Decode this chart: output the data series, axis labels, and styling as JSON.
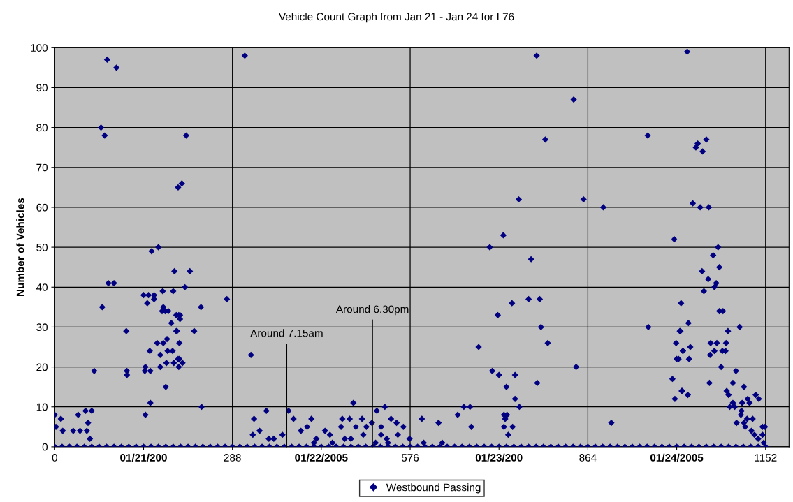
{
  "chart_data": {
    "type": "scatter",
    "title": "Vehicle Count Graph from Jan 21 - Jan 24 for I 76",
    "ylabel": "Number of Vehicles",
    "xlim": [
      0,
      1190
    ],
    "xticks": [
      0,
      {
        "value": 144,
        "label": "01/21/200"
      },
      288,
      {
        "value": 432,
        "label": "01/22/2005"
      },
      576,
      {
        "value": 720,
        "label": "01/23/200"
      },
      864,
      {
        "value": 1008,
        "label": "01/24/2005"
      },
      1152
    ],
    "ylim": [
      0,
      100
    ],
    "yticks": [
      0,
      10,
      20,
      30,
      40,
      50,
      60,
      70,
      80,
      90,
      100
    ],
    "grid": true,
    "legend": "bottom",
    "marker": "diamond",
    "annotations": [
      {
        "text": "Around 7.15am",
        "x": 376,
        "y": 0
      },
      {
        "text": "Around 6.30pm",
        "x": 515,
        "y": 0
      }
    ],
    "series": [
      {
        "name": "Westbound Passing",
        "color": "#000080",
        "x": [
          0,
          2,
          10,
          13,
          38,
          30,
          41,
          50,
          52,
          54,
          57,
          60,
          64,
          75,
          81,
          77,
          85,
          100,
          87,
          96,
          116,
          117,
          117,
          147,
          147,
          144,
          152,
          150,
          161,
          161,
          157,
          168,
          154,
          155,
          155,
          146,
          171,
          175,
          176,
          174,
          179,
          184,
          166,
          171,
          176,
          182,
          183,
          180,
          181,
          189,
          191,
          192,
          194,
          197,
          198,
          200,
          193,
          201,
          202,
          203,
          206,
          213,
          219,
          211,
          201,
          203,
          197,
          202,
          200,
          207,
          237,
          226,
          279,
          238,
          308,
          318,
          323,
          332,
          321,
          343,
          379,
          387,
          399,
          369,
          347,
          355,
          484,
          522,
          535,
          416,
          409,
          466,
          478,
          498,
          545,
          554,
          565,
          595,
          514,
          529,
          438,
          464,
          488,
          505,
          556,
          575,
          598,
          446,
          424,
          529,
          538,
          420,
          450,
          480,
          500,
          520,
          540,
          470,
          622,
          628,
          653,
          663,
          673,
          675,
          687,
          705,
          727,
          709,
          720,
          718,
          732,
          728,
          733,
          730,
          728,
          742,
          735,
          741,
          746,
          746,
          753,
          752,
          772,
          768,
          786,
          788,
          799,
          782,
          781,
          795,
          841,
          857,
          889,
          845,
          902,
          961,
          962,
          1004,
          1001,
          1005,
          1007,
          1008,
          1011,
          1014,
          1015,
          1018,
          1017,
          1025,
          1027,
          1013,
          1030,
          1018,
          1028,
          1016,
          1026,
          1039,
          1042,
          1056,
          1050,
          1034,
          1046,
          1060,
          1075,
          1067,
          1077,
          1049,
          1059,
          1072,
          1069,
          1052,
          1077,
          1083,
          1110,
          1091,
          1063,
          1073,
          1088,
          1069,
          1062,
          1082,
          1087,
          1080,
          1104,
          1061,
          1099,
          1117,
          1089,
          1092,
          1136,
          1141,
          1123,
          1114,
          1126,
          1099,
          1094,
          1102,
          1113,
          1112,
          1122,
          1131,
          1105,
          1117,
          1119,
          1129,
          1147,
          1151,
          1134,
          1140,
          1149,
          1147,
          0,
          12,
          24,
          36,
          48,
          60,
          72,
          84,
          96,
          108,
          120,
          132,
          144,
          156,
          168,
          180,
          192,
          204,
          216,
          228,
          240,
          252,
          264,
          276,
          288,
          300,
          312,
          324,
          336,
          348,
          360,
          372,
          384,
          396,
          408,
          420,
          432,
          444,
          456,
          468,
          480,
          492,
          504,
          516,
          528,
          540,
          552,
          564,
          576,
          588,
          600,
          612,
          624,
          636,
          648,
          660,
          672,
          684,
          696,
          708,
          720,
          732,
          744,
          756,
          768,
          780,
          792,
          804,
          816,
          828,
          840,
          852,
          864,
          876,
          888,
          900,
          912,
          924,
          936,
          948,
          960,
          972,
          984,
          996,
          1008,
          1020,
          1032,
          1044,
          1056,
          1068,
          1080,
          1092,
          1104,
          1116,
          1128,
          1140,
          1152
        ],
        "values": [
          8,
          5,
          7,
          4,
          8,
          4,
          4,
          9,
          4,
          6,
          2,
          9,
          19,
          80,
          78,
          35,
          97,
          95,
          41,
          41,
          29,
          19,
          18,
          8,
          20,
          38,
          38,
          36,
          38,
          37,
          49,
          50,
          24,
          11,
          19,
          19,
          20,
          39,
          35,
          34,
          34,
          34,
          26,
          23,
          26,
          27,
          24,
          15,
          21,
          31,
          24,
          39,
          44,
          33,
          29,
          65,
          21,
          20,
          22,
          33,
          66,
          78,
          44,
          40,
          33,
          32,
          29,
          26,
          22,
          21,
          35,
          29,
          37,
          10,
          98,
          23,
          7,
          4,
          3,
          9,
          9,
          7,
          4,
          3,
          2,
          2,
          11,
          9,
          10,
          7,
          5,
          7,
          7,
          7,
          7,
          6,
          5,
          7,
          6,
          5,
          4,
          5,
          5,
          5,
          3,
          2,
          1,
          3,
          2,
          3,
          2,
          1,
          1,
          2,
          3,
          1,
          1,
          2,
          6,
          1,
          8,
          10,
          10,
          5,
          25,
          50,
          53,
          19,
          18,
          33,
          15,
          8,
          8,
          7,
          5,
          5,
          3,
          36,
          18,
          12,
          10,
          62,
          47,
          37,
          37,
          30,
          26,
          16,
          98,
          77,
          87,
          62,
          60,
          20,
          6,
          78,
          30,
          52,
          17,
          12,
          26,
          22,
          22,
          29,
          36,
          24,
          14,
          99,
          31,
          29,
          25,
          24,
          22,
          14,
          13,
          75,
          76,
          77,
          74,
          61,
          60,
          60,
          50,
          48,
          45,
          44,
          42,
          41,
          40,
          39,
          34,
          34,
          30,
          29,
          26,
          26,
          26,
          24,
          23,
          24,
          24,
          20,
          19,
          16,
          16,
          15,
          14,
          13,
          13,
          12,
          12,
          11,
          11,
          11,
          10,
          10,
          9,
          8,
          7,
          7,
          6,
          6,
          5,
          4,
          5,
          5,
          3,
          2,
          1,
          3,
          0,
          0,
          0,
          0,
          0,
          0,
          0,
          0,
          0,
          0,
          0,
          0,
          0,
          0,
          0,
          0,
          0,
          0,
          0,
          0,
          0,
          0,
          0,
          0,
          0,
          0,
          0,
          0,
          0,
          0,
          0,
          0,
          0,
          0,
          0,
          0,
          0,
          0,
          0,
          0,
          0,
          0,
          0,
          0,
          0,
          0,
          0,
          0,
          0,
          0,
          0,
          0,
          0,
          0,
          0,
          0,
          0,
          0,
          0,
          0,
          0,
          0,
          0,
          0,
          0,
          0,
          0,
          0,
          0,
          0,
          0,
          0,
          0,
          0,
          0,
          0,
          0,
          0,
          0,
          0,
          0,
          0,
          0,
          0,
          0,
          0,
          0,
          0,
          0,
          0,
          0,
          0,
          0,
          0,
          0,
          0,
          0
        ]
      }
    ]
  }
}
